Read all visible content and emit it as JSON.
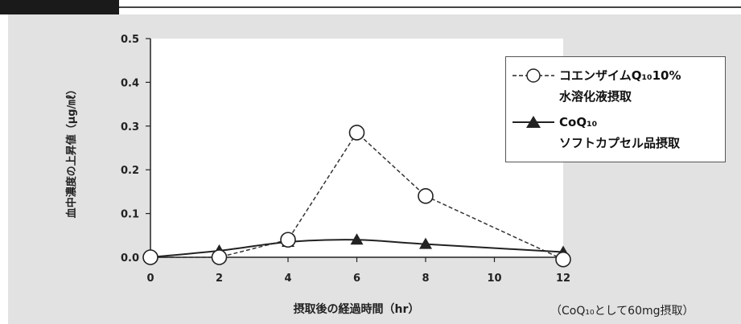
{
  "chart_data": {
    "type": "line",
    "title": "",
    "xlabel": "摂取後の経過時間（hr）",
    "ylabel": "血中濃度の上昇値（μg/㎖）",
    "xlim": [
      0,
      12
    ],
    "ylim": [
      0,
      0.5
    ],
    "xticks": [
      "0",
      "2",
      "4",
      "6",
      "8",
      "10",
      "12"
    ],
    "yticks": [
      "0.0",
      "0.1",
      "0.2",
      "0.3",
      "0.4",
      "0.5"
    ],
    "series": [
      {
        "name_main": "コエンザイムQ₁₀10%",
        "name_sub": "水溶化液摂取",
        "marker": "open-circle",
        "line": "dashed",
        "x": [
          0,
          2,
          4,
          6,
          8,
          12
        ],
        "y": [
          0.0,
          0.0,
          0.04,
          0.285,
          0.14,
          -0.005
        ]
      },
      {
        "name_main": "CoQ₁₀",
        "name_sub": "ソフトカプセル品摂取",
        "marker": "filled-triangle",
        "line": "solid",
        "x": [
          0,
          2,
          4,
          6,
          8,
          12
        ],
        "y": [
          0.0,
          0.015,
          0.035,
          0.04,
          0.03,
          0.012
        ]
      }
    ],
    "legend_position": "top-right"
  },
  "note": "（CoQ₁₀として60mg摂取）"
}
